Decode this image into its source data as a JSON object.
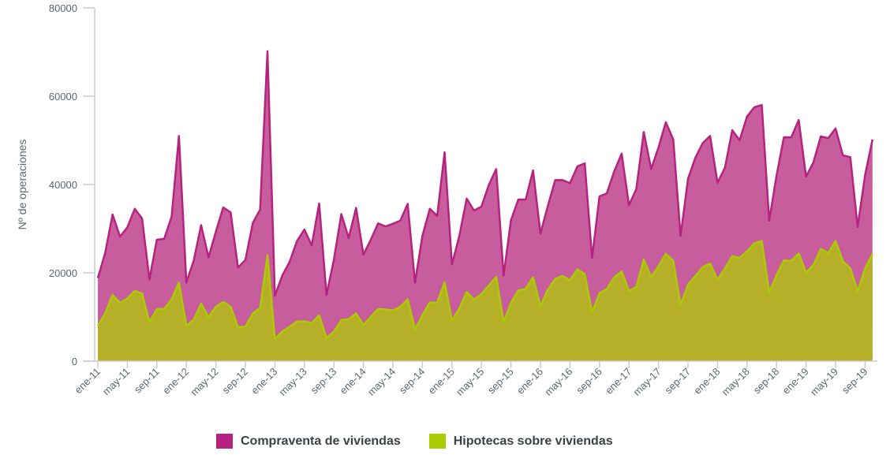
{
  "chart_data": {
    "type": "area",
    "title": "",
    "xlabel": "",
    "ylabel": "Nº de operaciones",
    "ylim": [
      0,
      80000
    ],
    "yticks": [
      0,
      20000,
      40000,
      60000,
      80000
    ],
    "ytick_labels": [
      "0",
      "20000",
      "40000",
      "60000",
      "80000"
    ],
    "x_start": "ene-11",
    "x_end": "oct-19",
    "xtick_labels": [
      "ene-11",
      "may-11",
      "sep-11",
      "ene-12",
      "may-12",
      "sep-12",
      "ene-13",
      "may-13",
      "sep-13",
      "ene-14",
      "may-14",
      "sep-14",
      "ene-15",
      "may-15",
      "sep-15",
      "ene-16",
      "may-16",
      "sep-16",
      "ene-17",
      "may-17",
      "sep-17",
      "ene-18",
      "may-18",
      "sep-18",
      "ene-19",
      "may-19",
      "sep-19"
    ],
    "grid": false,
    "legend_position": "bottom",
    "series": [
      {
        "name": "Compraventa de viviendas",
        "color": "#b5237f",
        "fill": "#c85d9e",
        "values": [
          18800,
          24500,
          33200,
          28200,
          30300,
          34500,
          32300,
          18500,
          27500,
          27700,
          32700,
          51000,
          17800,
          22800,
          30800,
          23500,
          29300,
          34800,
          33700,
          21200,
          22900,
          31300,
          34300,
          70200,
          14800,
          19400,
          22500,
          27200,
          29800,
          26200,
          35700,
          15000,
          23000,
          33300,
          27900,
          34700,
          24100,
          27500,
          31200,
          30500,
          31100,
          31800,
          35600,
          17800,
          28400,
          34500,
          32900,
          47300,
          21900,
          28300,
          36800,
          34100,
          35000,
          39900,
          43500,
          19400,
          31900,
          36600,
          36600,
          43200,
          28900,
          35200,
          41000,
          41000,
          40300,
          44100,
          44800,
          23400,
          37300,
          38000,
          43000,
          47000,
          35300,
          39000,
          51900,
          43500,
          48400,
          54100,
          50200,
          28300,
          41300,
          46100,
          49400,
          51000,
          40400,
          43800,
          52300,
          50000,
          55400,
          57500,
          58000,
          31800,
          42000,
          50700,
          50700,
          54600,
          41800,
          45000,
          50900,
          50500,
          52700,
          46600,
          46200,
          30400,
          42100,
          50200
        ]
      },
      {
        "name": "Hipotecas sobre viviendas",
        "color": "#aacc00",
        "fill": "#b5b028",
        "values": [
          8000,
          10800,
          15000,
          13200,
          14200,
          15900,
          15300,
          8800,
          11800,
          11800,
          14000,
          17800,
          8000,
          9400,
          13000,
          10000,
          12300,
          13400,
          12300,
          7700,
          7800,
          10800,
          12000,
          24000,
          5000,
          6700,
          7800,
          9000,
          9000,
          8600,
          10400,
          5200,
          6700,
          9300,
          9500,
          10800,
          8200,
          10000,
          11800,
          11700,
          11500,
          12300,
          14000,
          7200,
          10400,
          13300,
          13200,
          17900,
          9200,
          11900,
          15700,
          13900,
          15200,
          17100,
          19100,
          8800,
          13200,
          16000,
          16400,
          19000,
          12500,
          16200,
          18600,
          19300,
          18300,
          20800,
          19700,
          11000,
          15400,
          16300,
          19000,
          20300,
          15900,
          16800,
          23000,
          19000,
          21500,
          24300,
          22700,
          12700,
          17300,
          19300,
          21300,
          22100,
          18400,
          21000,
          23800,
          23400,
          24900,
          26700,
          27200,
          15500,
          19500,
          22800,
          22700,
          24400,
          20000,
          21800,
          25400,
          24500,
          27200,
          22600,
          21000,
          15800,
          21000,
          24300
        ]
      }
    ]
  }
}
